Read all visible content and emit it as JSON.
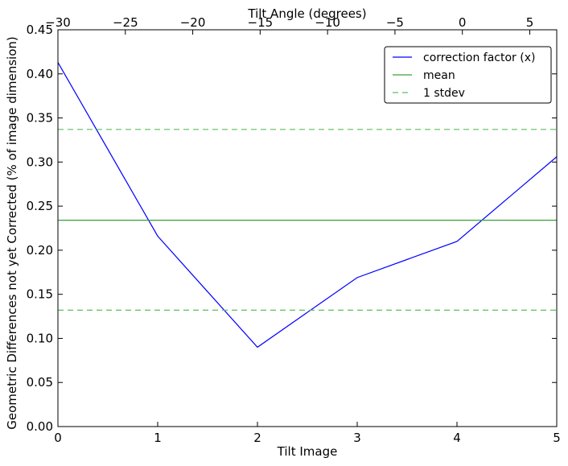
{
  "chart_data": {
    "type": "line",
    "xlabel": "Tilt Image",
    "ylabel": "Geometric Differences not yet Corrected (% of image dimension)",
    "top_xlabel": "Tilt Angle (degrees)",
    "xlim": [
      0,
      5
    ],
    "ylim": [
      0,
      0.45
    ],
    "top_xlim": [
      -30,
      7
    ],
    "x_ticks": [
      0,
      1,
      2,
      3,
      4,
      5
    ],
    "x_tick_labels": [
      "0",
      "1",
      "2",
      "3",
      "4",
      "5"
    ],
    "y_ticks": [
      0,
      0.05,
      0.1,
      0.15,
      0.2,
      0.25,
      0.3,
      0.35,
      0.4,
      0.45
    ],
    "y_tick_labels": [
      "0.00",
      "0.05",
      "0.10",
      "0.15",
      "0.20",
      "0.25",
      "0.30",
      "0.35",
      "0.40",
      "0.45"
    ],
    "top_ticks": [
      -30,
      -25,
      -20,
      -15,
      -10,
      -5,
      0,
      5
    ],
    "top_tick_labels": [
      "−30",
      "−25",
      "−20",
      "−15",
      "−10",
      "−5",
      "0",
      "5"
    ],
    "series": [
      {
        "name": "correction factor (x)",
        "style": "solid",
        "color": "#0000ff",
        "x": [
          0,
          1,
          2,
          3,
          4,
          5
        ],
        "values": [
          0.413,
          0.216,
          0.09,
          0.169,
          0.21,
          0.306
        ]
      },
      {
        "name": "mean",
        "style": "solid",
        "color": "#3a9e3a",
        "x": [
          0,
          5
        ],
        "values": [
          0.234,
          0.234
        ]
      },
      {
        "name": "1 stdev",
        "style": "dashed",
        "color": "#5cbf5c",
        "x": [
          0,
          5
        ],
        "values": [
          0.337,
          0.337
        ]
      },
      {
        "name": "",
        "style": "dashed",
        "color": "#5cbf5c",
        "x": [
          0,
          5
        ],
        "values": [
          0.132,
          0.132
        ]
      }
    ],
    "legend": {
      "placement": "top-right",
      "entries": [
        "correction factor (x)",
        "mean",
        "1 stdev"
      ]
    },
    "grid": false
  }
}
